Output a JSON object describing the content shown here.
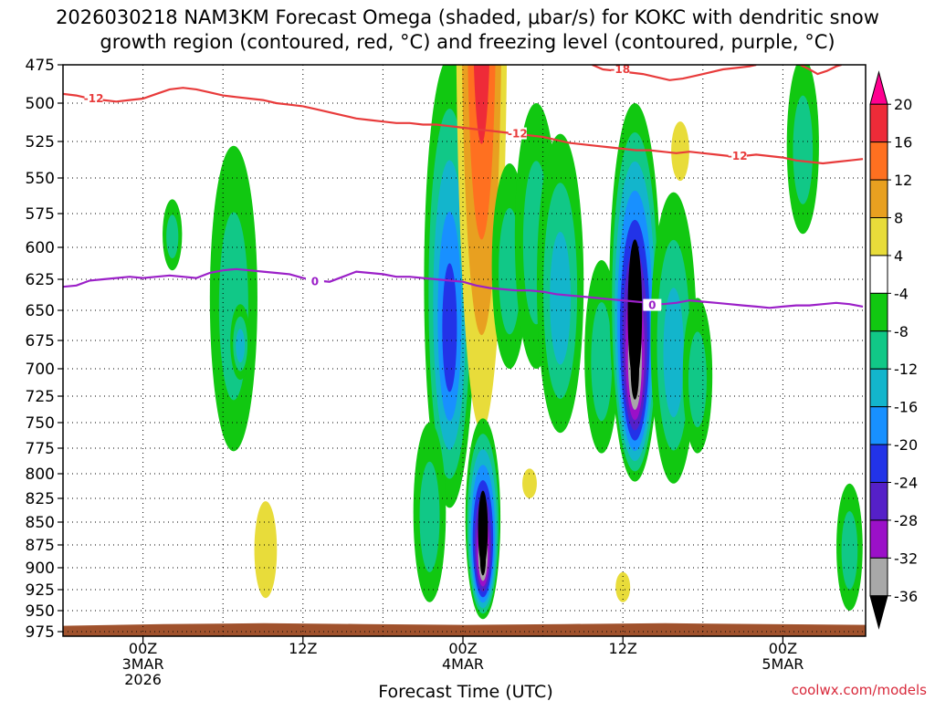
{
  "chart_data": {
    "type": "heatmap",
    "title_lines": [
      "2026030218 NAM3KM Forecast Omega (shaded, μbar/s) for KOKC with dendritic snow",
      "growth region (contoured, red, °C) and freezing level (contoured, purple, °C)"
    ],
    "xlabel": "Forecast Time (UTC)",
    "ylabel": "",
    "credit": "coolwx.com/models",
    "y_axis": {
      "units": "mb",
      "range": [
        975,
        475
      ],
      "ticks": [
        475,
        500,
        525,
        550,
        575,
        600,
        625,
        650,
        675,
        700,
        725,
        750,
        775,
        800,
        825,
        850,
        875,
        900,
        925,
        950,
        975
      ]
    },
    "x_axis": {
      "units": "forecast hour from 2026-03-02 18Z",
      "range": [
        0,
        60
      ],
      "ticks": [
        {
          "hour": 6,
          "lines": [
            "00Z",
            "3MAR",
            "2026"
          ]
        },
        {
          "hour": 18,
          "lines": [
            "12Z"
          ]
        },
        {
          "hour": 30,
          "lines": [
            "00Z",
            "4MAR"
          ]
        },
        {
          "hour": 42,
          "lines": [
            "12Z"
          ]
        },
        {
          "hour": 54,
          "lines": [
            "00Z",
            "5MAR"
          ]
        }
      ],
      "minor_grid_hours": [
        6,
        12,
        18,
        24,
        30,
        36,
        42,
        48,
        54
      ]
    },
    "grid": true,
    "colorbar": {
      "labels": [
        20,
        16,
        12,
        8,
        4,
        -4,
        -8,
        -12,
        -16,
        -20,
        -24,
        -28,
        -32,
        -36
      ],
      "bins": [
        {
          "range": [
            ">",
            20
          ],
          "color": "#ff0090"
        },
        {
          "range": [
            16,
            20
          ],
          "color": "#ee2b38"
        },
        {
          "range": [
            12,
            16
          ],
          "color": "#ff7020"
        },
        {
          "range": [
            8,
            12
          ],
          "color": "#e8a020"
        },
        {
          "range": [
            4,
            8
          ],
          "color": "#e8dc3a"
        },
        {
          "range": [
            -4,
            4
          ],
          "color": "#ffffff"
        },
        {
          "range": [
            -8,
            -4
          ],
          "color": "#11c811"
        },
        {
          "range": [
            -12,
            -8
          ],
          "color": "#11c887"
        },
        {
          "range": [
            -16,
            -12
          ],
          "color": "#13b5cc"
        },
        {
          "range": [
            -20,
            -16
          ],
          "color": "#1890ff"
        },
        {
          "range": [
            -24,
            -20
          ],
          "color": "#2233e8"
        },
        {
          "range": [
            -28,
            -24
          ],
          "color": "#5520c8"
        },
        {
          "range": [
            -32,
            -28
          ],
          "color": "#9b10c8"
        },
        {
          "range": [
            -36,
            -32
          ],
          "color": "#a8a8a8"
        },
        {
          "range": [
            "<",
            -36
          ],
          "color": "#000000"
        }
      ]
    },
    "contours": [
      {
        "name": "-18",
        "kind": "dendritic growth region",
        "color": "#e83b3b",
        "labels": [
          {
            "text": "-18",
            "hour": 41.8,
            "p": 478
          }
        ],
        "points": [
          [
            39.7,
            475
          ],
          [
            40.5,
            478
          ],
          [
            41.5,
            479
          ],
          [
            42.5,
            480
          ],
          [
            43.5,
            481
          ],
          [
            44.5,
            483
          ],
          [
            45.5,
            485
          ],
          [
            46.5,
            484
          ],
          [
            47.5,
            482
          ],
          [
            48.5,
            480
          ],
          [
            49.5,
            478
          ],
          [
            50.5,
            477
          ],
          [
            51.5,
            476
          ],
          [
            52,
            475
          ]
        ]
      },
      {
        "name": "-18b",
        "kind": "dendritic growth region",
        "color": "#e83b3b",
        "labels": [],
        "points": [
          [
            55.3,
            475
          ],
          [
            56,
            478
          ],
          [
            56.6,
            481
          ],
          [
            57.3,
            479
          ],
          [
            58,
            476
          ],
          [
            58.4,
            475
          ]
        ]
      },
      {
        "name": "-12",
        "kind": "dendritic growth region",
        "color": "#e83b3b",
        "labels": [
          {
            "text": "-12",
            "hour": 2.3,
            "p": 497
          },
          {
            "text": "-12",
            "hour": 34.1,
            "p": 520
          },
          {
            "text": "-12",
            "hour": 50.6,
            "p": 535
          }
        ],
        "points": [
          [
            0,
            494
          ],
          [
            1,
            495
          ],
          [
            2,
            497
          ],
          [
            3,
            498
          ],
          [
            4,
            499
          ],
          [
            5,
            498
          ],
          [
            6,
            497
          ],
          [
            7,
            494
          ],
          [
            8,
            491
          ],
          [
            9,
            490
          ],
          [
            10,
            491
          ],
          [
            11,
            493
          ],
          [
            12,
            495
          ],
          [
            13,
            496
          ],
          [
            14,
            497
          ],
          [
            15,
            498
          ],
          [
            16,
            500
          ],
          [
            17,
            501
          ],
          [
            18,
            502
          ],
          [
            19,
            504
          ],
          [
            20,
            506
          ],
          [
            21,
            508
          ],
          [
            22,
            510
          ],
          [
            23,
            511
          ],
          [
            24,
            512
          ],
          [
            25,
            513
          ],
          [
            26,
            513
          ],
          [
            27,
            514
          ],
          [
            28,
            514
          ],
          [
            29,
            515
          ],
          [
            30,
            516
          ],
          [
            31,
            517
          ],
          [
            32,
            518
          ],
          [
            33,
            519
          ],
          [
            34,
            520
          ],
          [
            35,
            521
          ],
          [
            36,
            522
          ],
          [
            37,
            524
          ],
          [
            38,
            526
          ],
          [
            39,
            527
          ],
          [
            40,
            528
          ],
          [
            41,
            529
          ],
          [
            42,
            530
          ],
          [
            43,
            531
          ],
          [
            44,
            531
          ],
          [
            45,
            532
          ],
          [
            46,
            533
          ],
          [
            47,
            532
          ],
          [
            48,
            533
          ],
          [
            49,
            534
          ],
          [
            50,
            535
          ],
          [
            51,
            535
          ],
          [
            52,
            534
          ],
          [
            53,
            535
          ],
          [
            54,
            536
          ],
          [
            55,
            538
          ],
          [
            56,
            539
          ],
          [
            57,
            540
          ],
          [
            58,
            539
          ],
          [
            59,
            538
          ],
          [
            60,
            537
          ]
        ]
      },
      {
        "name": "0",
        "kind": "freezing level",
        "color": "#9b20c8",
        "labels": [
          {
            "text": "0",
            "hour": 18.9,
            "p": 627
          },
          {
            "text": "0",
            "hour": 44.2,
            "p": 646
          }
        ],
        "points": [
          [
            0,
            631
          ],
          [
            1,
            630
          ],
          [
            2,
            626
          ],
          [
            3,
            625
          ],
          [
            4,
            624
          ],
          [
            5,
            623
          ],
          [
            6,
            624
          ],
          [
            7,
            623
          ],
          [
            8,
            622
          ],
          [
            9,
            623
          ],
          [
            10,
            624
          ],
          [
            11,
            620
          ],
          [
            12,
            618
          ],
          [
            13,
            617
          ],
          [
            14,
            618
          ],
          [
            15,
            619
          ],
          [
            16,
            620
          ],
          [
            17,
            621
          ],
          [
            18,
            624
          ],
          [
            19,
            626
          ],
          [
            20,
            627
          ],
          [
            21,
            623
          ],
          [
            22,
            619
          ],
          [
            23,
            620
          ],
          [
            24,
            621
          ],
          [
            25,
            623
          ],
          [
            26,
            623
          ],
          [
            27,
            624
          ],
          [
            28,
            625
          ],
          [
            29,
            626
          ],
          [
            30,
            627
          ],
          [
            31,
            630
          ],
          [
            32,
            632
          ],
          [
            33,
            633
          ],
          [
            34,
            634
          ],
          [
            35,
            634
          ],
          [
            36,
            635
          ],
          [
            37,
            637
          ],
          [
            38,
            638
          ],
          [
            39,
            639
          ],
          [
            40,
            640
          ],
          [
            41,
            641
          ],
          [
            42,
            642
          ],
          [
            43,
            643
          ],
          [
            44,
            644
          ],
          [
            45,
            645
          ],
          [
            46,
            644
          ],
          [
            47,
            642
          ],
          [
            48,
            643
          ],
          [
            49,
            644
          ],
          [
            50,
            645
          ],
          [
            51,
            646
          ],
          [
            52,
            647
          ],
          [
            53,
            648
          ],
          [
            54,
            647
          ],
          [
            55,
            646
          ],
          [
            56,
            646
          ],
          [
            57,
            645
          ],
          [
            58,
            644
          ],
          [
            59,
            645
          ],
          [
            60,
            647
          ]
        ]
      }
    ],
    "omega_cells": [
      {
        "hour": 12.8,
        "p_top": 528,
        "p_bottom": 778,
        "omega_min": -10
      },
      {
        "hour": 13.3,
        "p_top": 645,
        "p_bottom": 710,
        "omega_min": -12
      },
      {
        "hour": 8.2,
        "p_top": 565,
        "p_bottom": 618,
        "omega_min": -8
      },
      {
        "hour": 15.2,
        "p_top": 828,
        "p_bottom": 935,
        "omega_max": 7
      },
      {
        "hour": 29.0,
        "p_top": 470,
        "p_bottom": 835,
        "omega_min": -20
      },
      {
        "hour": 27.5,
        "p_top": 750,
        "p_bottom": 940,
        "omega_min": -10
      },
      {
        "hour": 31.4,
        "p_top": 140,
        "p_bottom": 758,
        "omega_max": 17
      },
      {
        "hour": 31.5,
        "p_top": 746,
        "p_bottom": 960,
        "omega_min": -48
      },
      {
        "hour": 33.5,
        "p_top": 540,
        "p_bottom": 700,
        "omega_min": -10
      },
      {
        "hour": 35.5,
        "p_top": 500,
        "p_bottom": 700,
        "omega_min": -10
      },
      {
        "hour": 37.3,
        "p_top": 520,
        "p_bottom": 760,
        "omega_min": -12
      },
      {
        "hour": 40.4,
        "p_top": 610,
        "p_bottom": 780,
        "omega_min": -10
      },
      {
        "hour": 42.9,
        "p_top": 500,
        "p_bottom": 808,
        "omega_min": -48
      },
      {
        "hour": 45.8,
        "p_top": 560,
        "p_bottom": 810,
        "omega_min": -12
      },
      {
        "hour": 47.6,
        "p_top": 640,
        "p_bottom": 780,
        "omega_min": -8
      },
      {
        "hour": 46.3,
        "p_top": 512,
        "p_bottom": 552,
        "omega_max": 6
      },
      {
        "hour": 42.0,
        "p_top": 905,
        "p_bottom": 940,
        "omega_max": 6
      },
      {
        "hour": 35.0,
        "p_top": 795,
        "p_bottom": 825,
        "omega_max": 6
      },
      {
        "hour": 55.5,
        "p_top": 470,
        "p_bottom": 590,
        "omega_min": -8
      },
      {
        "hour": 59.0,
        "p_top": 810,
        "p_bottom": 950,
        "omega_min": -10
      }
    ],
    "terrain": {
      "color": "#a0522d",
      "surface_pressure": [
        968,
        966,
        965,
        966,
        967,
        966,
        965,
        966,
        967
      ]
    }
  }
}
